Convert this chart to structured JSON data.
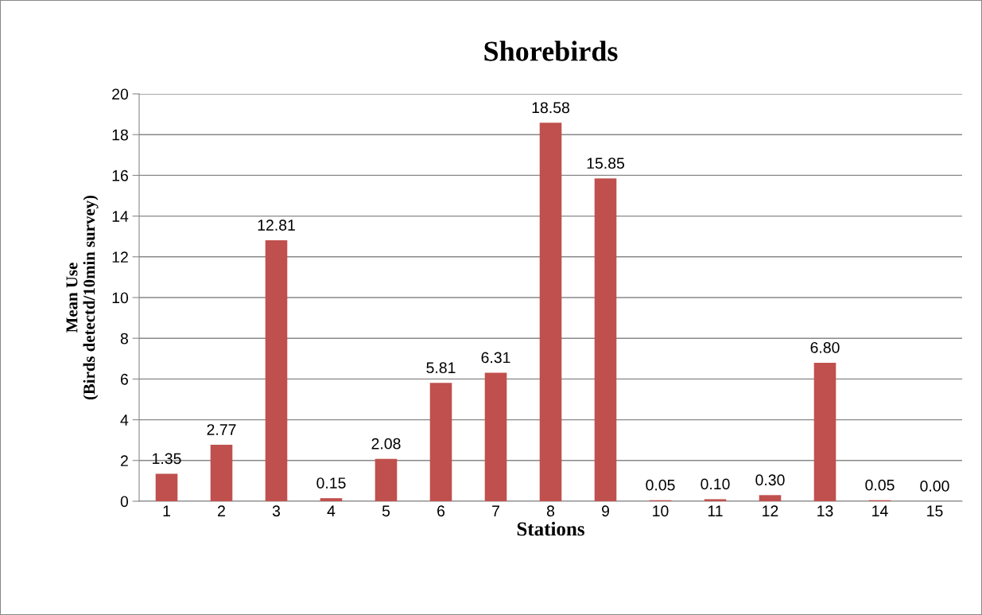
{
  "chart_data": {
    "type": "bar",
    "title": "Shorebirds",
    "xlabel": "Stations",
    "ylabel": "Mean Use\n(Birds detectd/10min survey)",
    "categories": [
      "1",
      "2",
      "3",
      "4",
      "5",
      "6",
      "7",
      "8",
      "9",
      "10",
      "11",
      "12",
      "13",
      "14",
      "15"
    ],
    "values": [
      1.35,
      2.77,
      12.81,
      0.15,
      2.08,
      5.81,
      6.31,
      18.58,
      15.85,
      0.05,
      0.1,
      0.3,
      6.8,
      0.05,
      0.0
    ],
    "value_labels": [
      "1.35",
      "2.77",
      "12.81",
      "0.15",
      "2.08",
      "5.81",
      "6.31",
      "18.58",
      "15.85",
      "0.05",
      "0.10",
      "0.30",
      "6.80",
      "0.05",
      "0.00"
    ],
    "color": "#c0504d",
    "ylim": [
      0,
      20
    ],
    "yticks": [
      0,
      2,
      4,
      6,
      8,
      10,
      12,
      14,
      16,
      18,
      20
    ],
    "grid": "y"
  }
}
